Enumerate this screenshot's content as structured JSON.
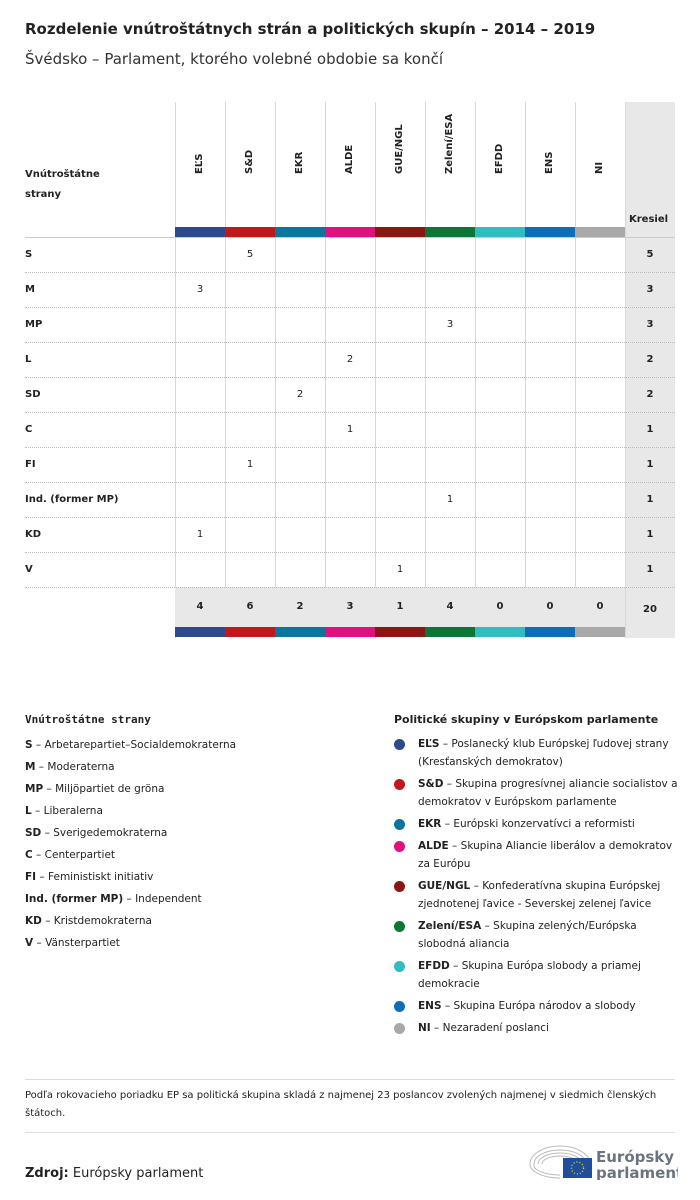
{
  "title": "Rozdelenie vnútroštátnych strán a politických skupín – 2014 – 2019",
  "subtitle": "Švédsko – Parlament, ktorého volebné obdobie sa končí",
  "chart_data": {
    "type": "table",
    "row_header": "Vnútroštátne strany",
    "total_header": "Kresiel",
    "groups": [
      {
        "name": "EĽS",
        "color": "#2d4a8c"
      },
      {
        "name": "S&D",
        "color": "#c0191b"
      },
      {
        "name": "EKR",
        "color": "#0a759e"
      },
      {
        "name": "ALDE",
        "color": "#e0117f"
      },
      {
        "name": "GUE/NGL",
        "color": "#8b1713"
      },
      {
        "name": "Zelení/ESA",
        "color": "#0d7535"
      },
      {
        "name": "EFDD",
        "color": "#2fbdc1"
      },
      {
        "name": "ENS",
        "color": "#0d6db5"
      },
      {
        "name": "NI",
        "color": "#a9a9a9"
      }
    ],
    "rows": [
      {
        "party": "S",
        "values": [
          null,
          5,
          null,
          null,
          null,
          null,
          null,
          null,
          null
        ],
        "total": 5
      },
      {
        "party": "M",
        "values": [
          3,
          null,
          null,
          null,
          null,
          null,
          null,
          null,
          null
        ],
        "total": 3
      },
      {
        "party": "MP",
        "values": [
          null,
          null,
          null,
          null,
          null,
          3,
          null,
          null,
          null
        ],
        "total": 3
      },
      {
        "party": "L",
        "values": [
          null,
          null,
          null,
          2,
          null,
          null,
          null,
          null,
          null
        ],
        "total": 2
      },
      {
        "party": "SD",
        "values": [
          null,
          null,
          2,
          null,
          null,
          null,
          null,
          null,
          null
        ],
        "total": 2
      },
      {
        "party": "C",
        "values": [
          null,
          null,
          null,
          1,
          null,
          null,
          null,
          null,
          null
        ],
        "total": 1
      },
      {
        "party": "FI",
        "values": [
          null,
          1,
          null,
          null,
          null,
          null,
          null,
          null,
          null
        ],
        "total": 1
      },
      {
        "party": "Ind. (former MP)",
        "values": [
          null,
          null,
          null,
          null,
          null,
          1,
          null,
          null,
          null
        ],
        "total": 1
      },
      {
        "party": "KD",
        "values": [
          1,
          null,
          null,
          null,
          null,
          null,
          null,
          null,
          null
        ],
        "total": 1
      },
      {
        "party": "V",
        "values": [
          null,
          null,
          null,
          null,
          1,
          null,
          null,
          null,
          null
        ],
        "total": 1
      }
    ],
    "group_totals": [
      4,
      6,
      2,
      3,
      1,
      4,
      0,
      0,
      0
    ],
    "grand_total": 20
  },
  "legend_parties": {
    "title": "Vnútroštátne strany",
    "items": [
      {
        "abbr": "S",
        "name": "Arbetarepartiet–Socialdemokraterna"
      },
      {
        "abbr": "M",
        "name": "Moderaterna"
      },
      {
        "abbr": "MP",
        "name": "Miljöpartiet de gröna"
      },
      {
        "abbr": "L",
        "name": "Liberalerna"
      },
      {
        "abbr": "SD",
        "name": "Sverigedemokraterna"
      },
      {
        "abbr": "C",
        "name": "Centerpartiet"
      },
      {
        "abbr": "FI",
        "name": "Feministiskt initiativ"
      },
      {
        "abbr": "Ind. (former MP)",
        "name": "Independent"
      },
      {
        "abbr": "KD",
        "name": "Kristdemokraterna"
      },
      {
        "abbr": "V",
        "name": "Vänsterpartiet"
      }
    ]
  },
  "legend_groups": {
    "title": "Politické skupiny v Európskom parlamente",
    "items": [
      {
        "abbr": "EĽS",
        "name": "Poslanecký klub Európskej ľudovej strany (Kresťanských demokratov)"
      },
      {
        "abbr": "S&D",
        "name": "Skupina progresívnej aliancie socialistov a demokratov v Európskom parlamente"
      },
      {
        "abbr": "EKR",
        "name": "Európski konzervatívci a reformisti"
      },
      {
        "abbr": "ALDE",
        "name": "Skupina Aliancie liberálov a demokratov za Európu"
      },
      {
        "abbr": "GUE/NGL",
        "name": "Konfederatívna skupina Európskej zjednotenej ľavice - Severskej zelenej ľavice"
      },
      {
        "abbr": "Zelení/ESA",
        "name": "Skupina zelených/Európska slobodná aliancia"
      },
      {
        "abbr": "EFDD",
        "name": "Skupina Európa slobody a priamej demokracie"
      },
      {
        "abbr": "ENS",
        "name": "Skupina Európa národov a slobody"
      },
      {
        "abbr": "NI",
        "name": "Nezaradení poslanci"
      }
    ]
  },
  "note": "Podľa rokovacieho poriadku EP sa politická skupina skladá z najmenej 23 poslancov zvolených najmenej v siedmich členských štátoch.",
  "source_label": "Zdroj:",
  "source": "Európsky parlament",
  "logo_text": "Európsky parlament"
}
